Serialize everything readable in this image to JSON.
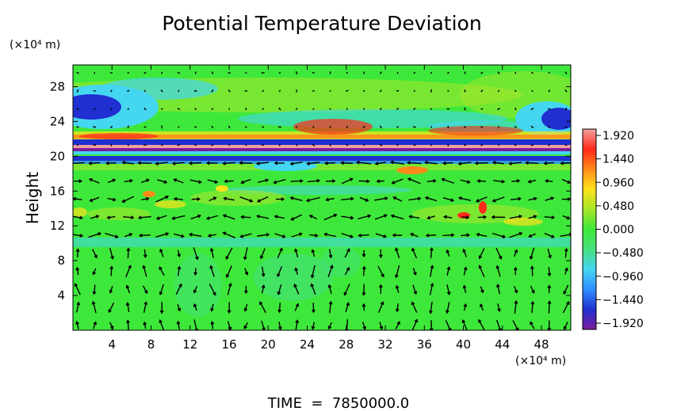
{
  "chart_data": {
    "type": "heatmap",
    "title": "Potential Temperature Deviation",
    "ylabel": "Height",
    "y_unit": "(×10⁴ m)",
    "x_unit": "(×10⁴ m)",
    "footer": "TIME  =  7850000.0",
    "x_ticks": [
      "4",
      "8",
      "12",
      "16",
      "20",
      "24",
      "28",
      "32",
      "36",
      "40",
      "44",
      "48"
    ],
    "y_ticks": [
      "4",
      "8",
      "12",
      "16",
      "20",
      "24",
      "28"
    ],
    "xlim": [
      0,
      51
    ],
    "ylim": [
      0,
      30.5
    ],
    "colorbar": {
      "ticks": [
        "1.920",
        "1.440",
        "0.960",
        "0.480",
        "0.000",
        "−0.480",
        "−0.960",
        "−1.440",
        "−1.920"
      ],
      "range": [
        -1.92,
        1.92
      ],
      "colors": [
        "#7a1e9e",
        "#1f2fd0",
        "#2f8fff",
        "#45d6f0",
        "#46e07e",
        "#3ee83a",
        "#a6e62a",
        "#ffe21a",
        "#ff8a1a",
        "#ff2a1a",
        "#f0a0a0"
      ]
    },
    "background_color": "#3ee83a"
  }
}
